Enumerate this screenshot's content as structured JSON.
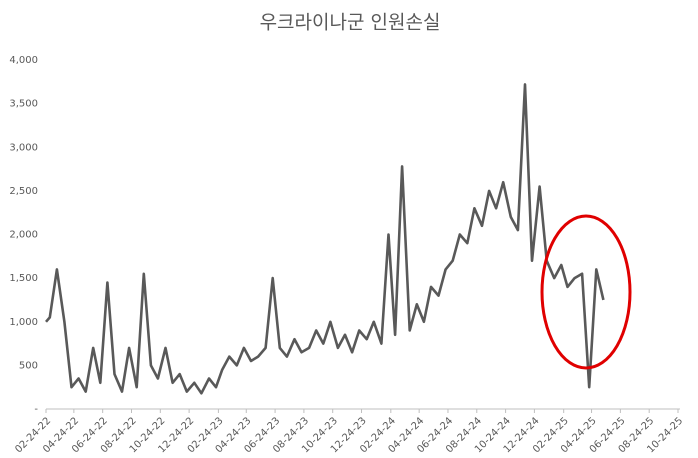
{
  "chart_data": {
    "type": "line",
    "title": "우크라이나군 인원손실",
    "x": [
      "02-24-22",
      "03-04-22",
      "03-19-22",
      "04-04-22",
      "04-19-22",
      "05-04-22",
      "05-19-22",
      "06-04-22",
      "06-19-22",
      "07-04-22",
      "07-19-22",
      "08-04-22",
      "08-19-22",
      "09-04-22",
      "09-19-22",
      "10-04-22",
      "10-19-22",
      "11-04-22",
      "11-19-22",
      "12-04-22",
      "12-19-22",
      "01-04-23",
      "01-19-23",
      "02-04-23",
      "02-19-23",
      "03-04-23",
      "03-19-23",
      "04-04-23",
      "04-19-23",
      "05-04-23",
      "05-19-23",
      "06-04-23",
      "06-19-23",
      "07-04-23",
      "07-19-23",
      "08-04-23",
      "08-19-23",
      "09-04-23",
      "09-19-23",
      "10-04-23",
      "10-19-23",
      "11-04-23",
      "11-19-23",
      "12-04-23",
      "12-19-23",
      "01-04-24",
      "01-19-24",
      "02-04-24",
      "02-19-24",
      "03-04-24",
      "03-19-24",
      "04-04-24",
      "04-19-24",
      "05-04-24",
      "05-19-24",
      "06-04-24",
      "06-19-24",
      "07-04-24",
      "07-19-24",
      "08-04-24",
      "08-19-24",
      "09-04-24",
      "09-19-24",
      "10-04-24",
      "10-19-24",
      "11-04-24",
      "11-19-24",
      "12-04-24",
      "12-19-24",
      "01-04-25",
      "01-19-25",
      "02-04-25",
      "02-19-25",
      "03-04-25",
      "03-19-25",
      "04-04-25",
      "04-19-25",
      "05-04-25",
      "05-19-25"
    ],
    "values": [
      1000,
      1050,
      1600,
      1000,
      250,
      350,
      200,
      700,
      300,
      1450,
      400,
      200,
      700,
      250,
      1550,
      500,
      350,
      700,
      300,
      400,
      200,
      300,
      180,
      350,
      250,
      450,
      600,
      500,
      700,
      550,
      600,
      700,
      1500,
      700,
      600,
      800,
      650,
      700,
      900,
      750,
      1000,
      700,
      850,
      650,
      900,
      800,
      1000,
      750,
      2000,
      850,
      2780,
      900,
      1200,
      1000,
      1400,
      1300,
      1600,
      1700,
      2000,
      1900,
      2300,
      2100,
      2500,
      2300,
      2600,
      2200,
      2050,
      3720,
      1700,
      2550,
      1700,
      1500,
      1650,
      1400,
      1500,
      1550,
      250,
      1600,
      1250
    ],
    "color": "#595959",
    "xlim": [
      "02-24-22",
      "10-24-25"
    ],
    "xticks": [
      "02-24-22",
      "04-24-22",
      "06-24-22",
      "08-24-22",
      "10-24-22",
      "12-24-22",
      "02-24-23",
      "04-24-23",
      "06-24-23",
      "08-24-23",
      "10-24-23",
      "12-24-23",
      "02-24-24",
      "04-24-24",
      "06-24-24",
      "08-24-24",
      "10-24-24",
      "12-24-24",
      "02-24-25",
      "04-24-25",
      "06-24-25",
      "08-24-25",
      "10-24-25"
    ],
    "ylim": [
      0,
      4000
    ],
    "yticks": [
      {
        "value": 0,
        "label": "-"
      },
      500,
      {
        "value": 1000,
        "label": "1,000"
      },
      {
        "value": 1500,
        "label": "1,500"
      },
      {
        "value": 2000,
        "label": "2,000"
      },
      {
        "value": 2500,
        "label": "2,500"
      },
      {
        "value": 3000,
        "label": "3,000"
      },
      {
        "value": 3500,
        "label": "3,500"
      },
      {
        "value": 4000,
        "label": "4,000"
      }
    ]
  }
}
